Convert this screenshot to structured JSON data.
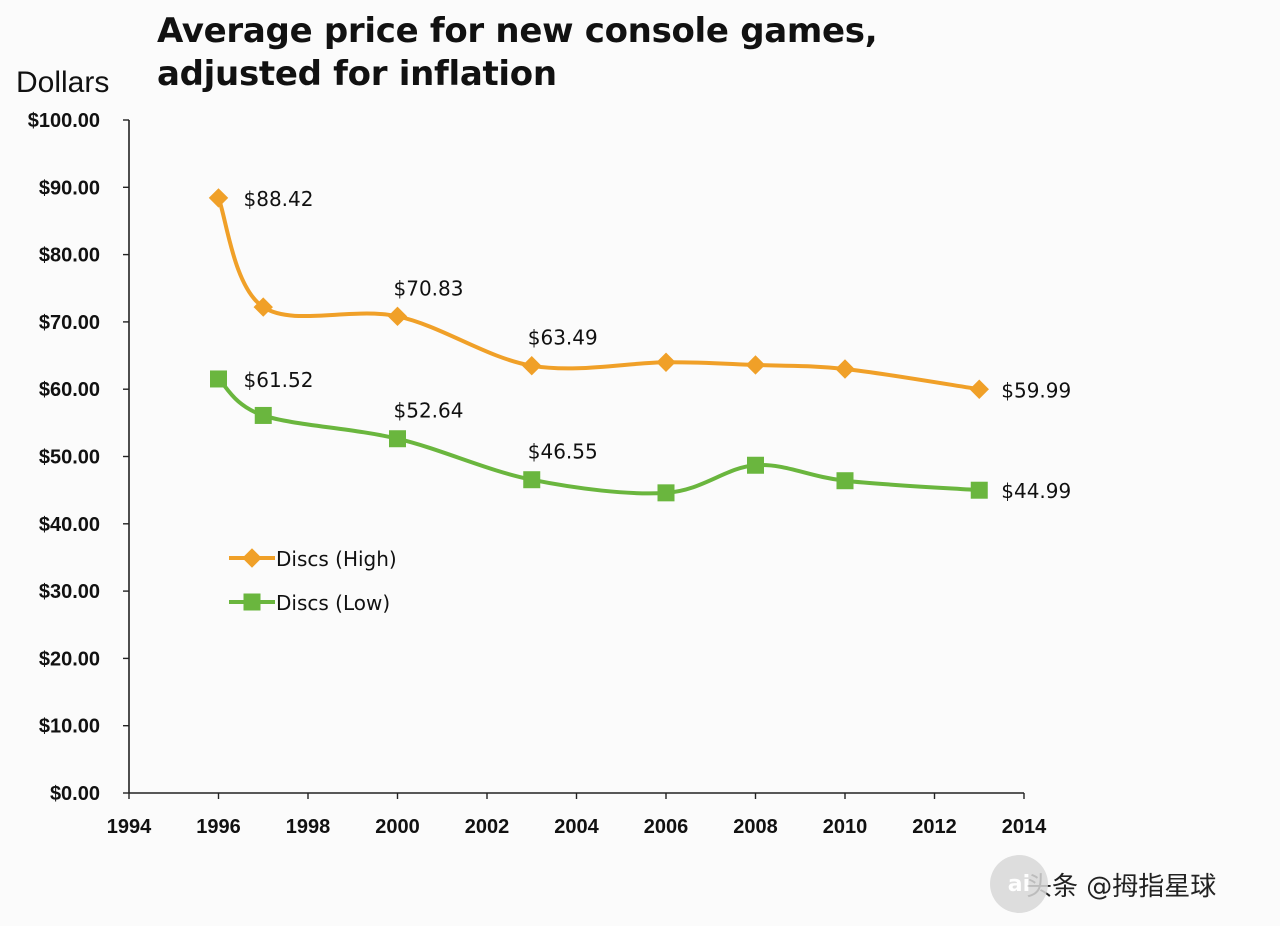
{
  "chart_data": {
    "type": "line",
    "title_line1": "Average price for new console games,",
    "title_line2": "adjusted for inflation",
    "ylabel": "Dollars",
    "xlabel": "",
    "xlim": [
      1994,
      2014
    ],
    "ylim": [
      0,
      100
    ],
    "x_ticks": [
      "1994",
      "1996",
      "1998",
      "2000",
      "2002",
      "2004",
      "2006",
      "2008",
      "2010",
      "2012",
      "2014"
    ],
    "y_ticks": [
      "$0.00",
      "$10.00",
      "$20.00",
      "$30.00",
      "$40.00",
      "$50.00",
      "$60.00",
      "$70.00",
      "$80.00",
      "$90.00",
      "$100.00"
    ],
    "legend_position": "lower-left",
    "series": [
      {
        "name": "Discs (High)",
        "color": "#f0a028",
        "marker": "diamond",
        "x": [
          1996,
          1997,
          2000,
          2003,
          2006,
          2008,
          2010,
          2013
        ],
        "values": [
          88.42,
          72.2,
          70.83,
          63.49,
          64.0,
          63.6,
          63.0,
          59.99
        ],
        "labels": [
          {
            "x": 1996,
            "text": "$88.42"
          },
          {
            "x": 2000,
            "text": "$70.83"
          },
          {
            "x": 2003,
            "text": "$63.49"
          },
          {
            "x": 2013,
            "text": "$59.99"
          }
        ]
      },
      {
        "name": "Discs (Low)",
        "color": "#6ab63e",
        "marker": "square",
        "x": [
          1996,
          1997,
          2000,
          2003,
          2006,
          2008,
          2010,
          2013
        ],
        "values": [
          61.52,
          56.1,
          52.64,
          46.55,
          44.6,
          48.7,
          46.4,
          44.99
        ],
        "labels": [
          {
            "x": 1996,
            "text": "$61.52"
          },
          {
            "x": 2000,
            "text": "$52.64"
          },
          {
            "x": 2003,
            "text": "$46.55"
          },
          {
            "x": 2013,
            "text": "$44.99"
          }
        ]
      }
    ]
  },
  "watermark": {
    "logo_text": "ai",
    "text": "头条 @拇指星球"
  }
}
